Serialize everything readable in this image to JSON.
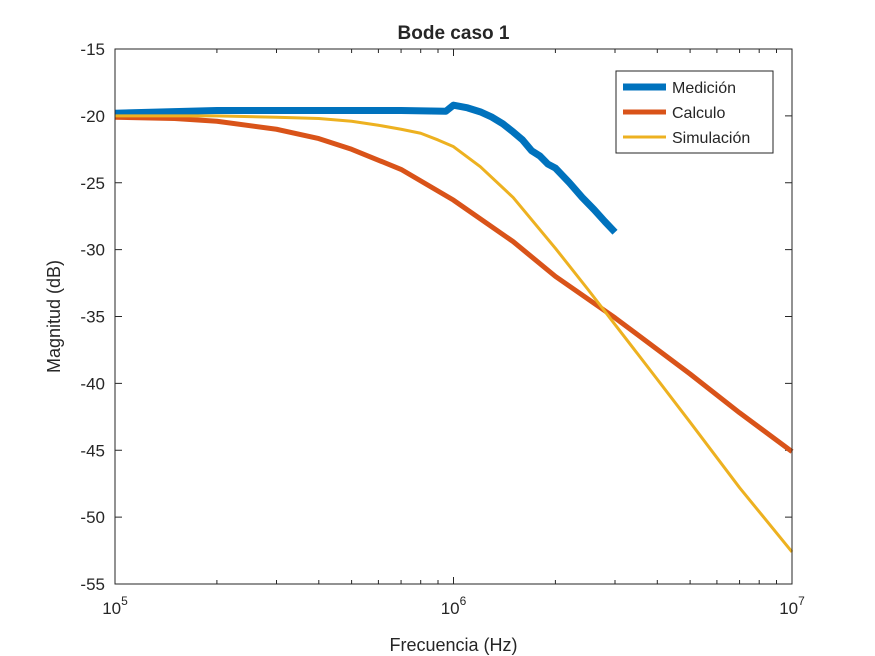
{
  "chart_data": {
    "type": "line",
    "title": "Bode caso 1",
    "xlabel": "Frecuencia (Hz)",
    "ylabel": "Magnitud (dB)",
    "x_scale": "log",
    "xlim": [
      100000,
      10000000
    ],
    "ylim": [
      -55,
      -15
    ],
    "x_ticks": [
      {
        "value": 100000,
        "base": "10",
        "exp": "5"
      },
      {
        "value": 1000000,
        "base": "10",
        "exp": "6"
      },
      {
        "value": 10000000,
        "base": "10",
        "exp": "7"
      }
    ],
    "y_ticks": [
      {
        "value": -15,
        "label": "-15"
      },
      {
        "value": -20,
        "label": "-20"
      },
      {
        "value": -25,
        "label": "-25"
      },
      {
        "value": -30,
        "label": "-30"
      },
      {
        "value": -35,
        "label": "-35"
      },
      {
        "value": -40,
        "label": "-40"
      },
      {
        "value": -45,
        "label": "-45"
      },
      {
        "value": -50,
        "label": "-50"
      },
      {
        "value": -55,
        "label": "-55"
      }
    ],
    "grid": false,
    "box": true,
    "legend": {
      "position": "top-right"
    },
    "series": [
      {
        "name": "Medición",
        "color": "#0072BD",
        "points": [
          [
            100000,
            -19.8
          ],
          [
            200000,
            -19.6
          ],
          [
            400000,
            -19.6
          ],
          [
            700000,
            -19.6
          ],
          [
            950000,
            -19.65
          ],
          [
            1000000,
            -19.2
          ],
          [
            1100000,
            -19.4
          ],
          [
            1200000,
            -19.7
          ],
          [
            1300000,
            -20.1
          ],
          [
            1400000,
            -20.6
          ],
          [
            1500000,
            -21.2
          ],
          [
            1600000,
            -21.8
          ],
          [
            1700000,
            -22.6
          ],
          [
            1800000,
            -23.0
          ],
          [
            1900000,
            -23.6
          ],
          [
            2000000,
            -23.9
          ],
          [
            2200000,
            -25.0
          ],
          [
            2400000,
            -26.1
          ],
          [
            2600000,
            -27.0
          ],
          [
            2800000,
            -27.9
          ],
          [
            3000000,
            -28.7
          ]
        ]
      },
      {
        "name": "Calculo",
        "color": "#D95319",
        "points": [
          [
            100000,
            -20.1
          ],
          [
            150000,
            -20.2
          ],
          [
            200000,
            -20.4
          ],
          [
            300000,
            -21.0
          ],
          [
            400000,
            -21.7
          ],
          [
            500000,
            -22.5
          ],
          [
            700000,
            -24.0
          ],
          [
            1000000,
            -26.3
          ],
          [
            1500000,
            -29.4
          ],
          [
            2000000,
            -32.0
          ],
          [
            3000000,
            -35.1
          ],
          [
            5000000,
            -39.3
          ],
          [
            7000000,
            -42.2
          ],
          [
            10000000,
            -45.1
          ]
        ]
      },
      {
        "name": "Simulación",
        "color": "#EDB120",
        "points": [
          [
            100000,
            -20.0
          ],
          [
            200000,
            -20.0
          ],
          [
            300000,
            -20.1
          ],
          [
            400000,
            -20.2
          ],
          [
            500000,
            -20.4
          ],
          [
            600000,
            -20.7
          ],
          [
            700000,
            -21.0
          ],
          [
            800000,
            -21.3
          ],
          [
            900000,
            -21.8
          ],
          [
            1000000,
            -22.3
          ],
          [
            1200000,
            -23.8
          ],
          [
            1500000,
            -26.1
          ],
          [
            2000000,
            -29.9
          ],
          [
            2500000,
            -33.0
          ],
          [
            3000000,
            -35.6
          ],
          [
            4000000,
            -39.7
          ],
          [
            5000000,
            -42.9
          ],
          [
            7000000,
            -47.8
          ],
          [
            10000000,
            -52.6
          ]
        ]
      }
    ]
  }
}
